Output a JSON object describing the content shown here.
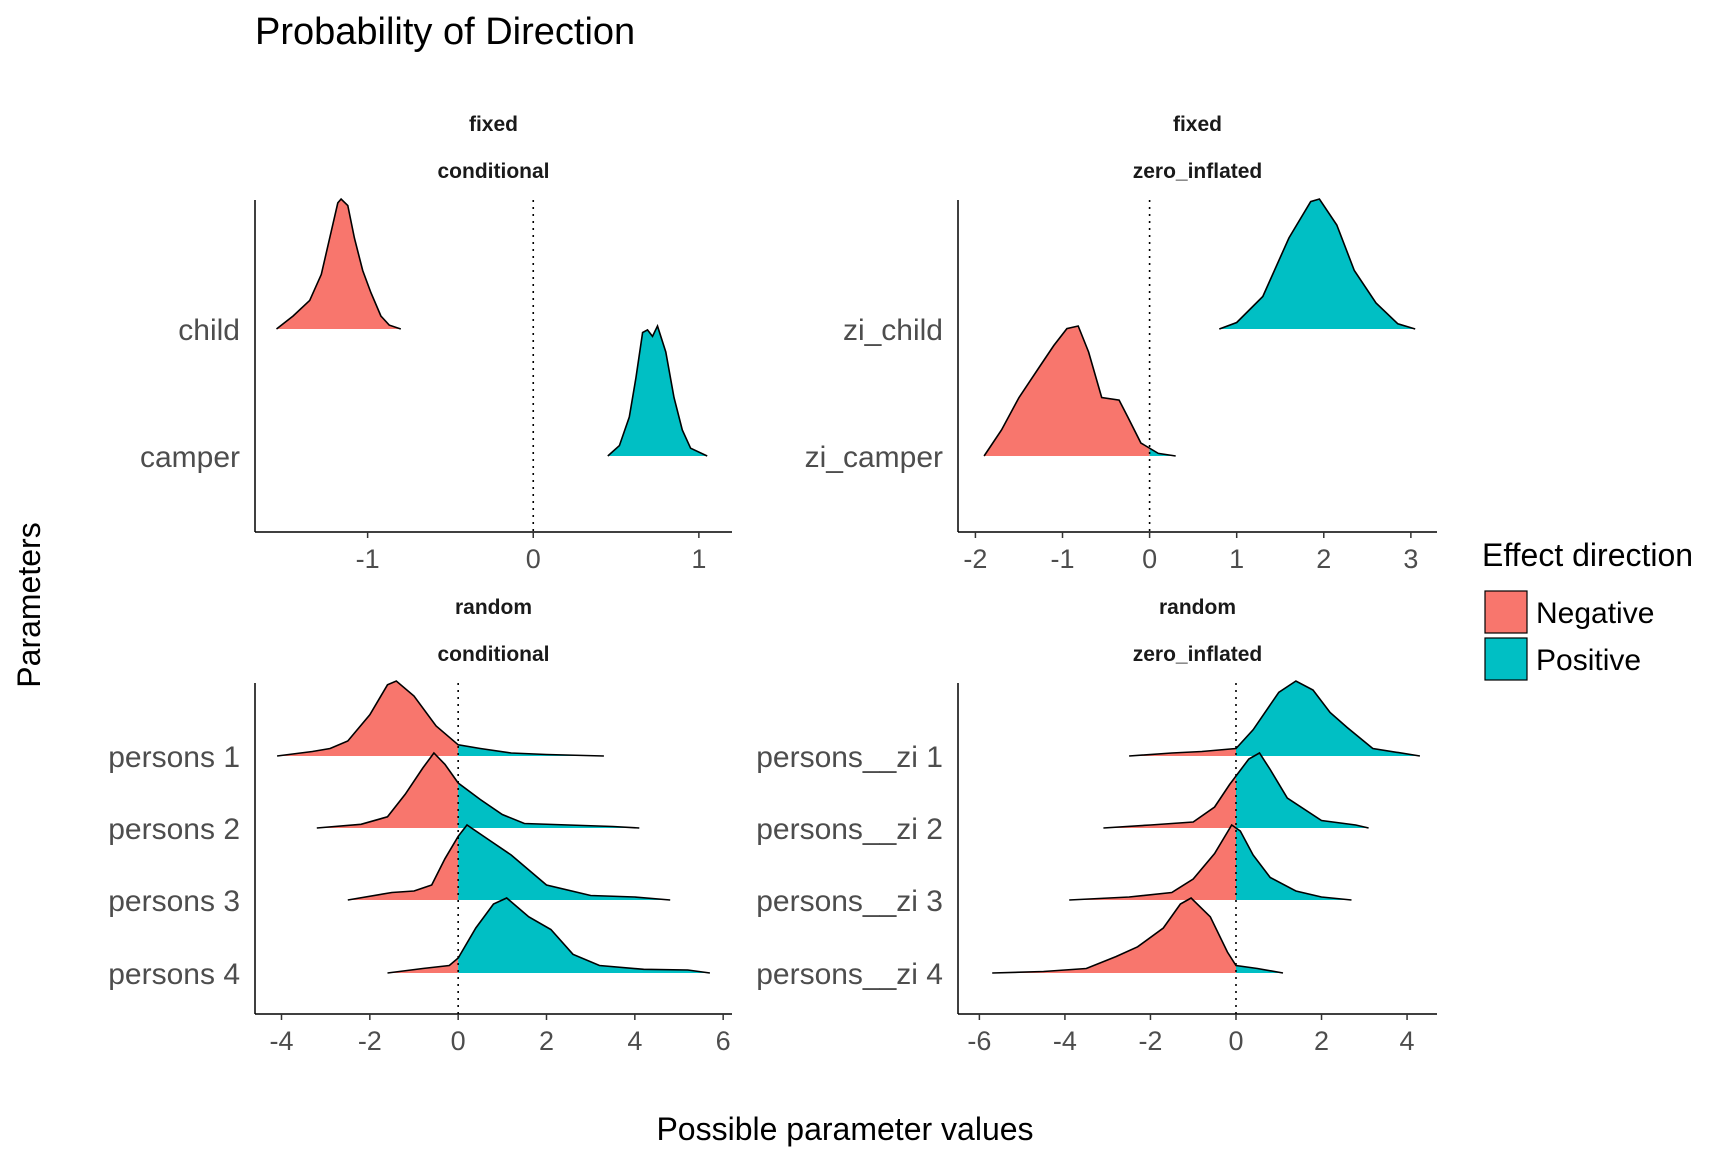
{
  "chart_data": {
    "type": "area",
    "title": "Probability of Direction",
    "xlabel": "Possible parameter values",
    "ylabel": "Parameters",
    "grid": false,
    "legend": {
      "title": "Effect direction",
      "placement": "right",
      "entries": [
        {
          "label": "Negative",
          "color": "#F8766D"
        },
        {
          "label": "Positive",
          "color": "#00BFC4"
        }
      ]
    },
    "reference_line_x": 0,
    "panels": [
      {
        "strip": [
          "fixed",
          "conditional"
        ],
        "xlim": [
          -1.68,
          1.2
        ],
        "xticks": [
          -1,
          0,
          1
        ],
        "parameters": [
          {
            "name": "child",
            "x": [
              -1.55,
              -1.45,
              -1.35,
              -1.28,
              -1.22,
              -1.18,
              -1.16,
              -1.12,
              -1.08,
              -1.03,
              -0.98,
              -0.92,
              -0.87,
              -0.8
            ],
            "density": [
              0,
              0.1,
              0.22,
              0.42,
              0.75,
              0.97,
              1.0,
              0.95,
              0.7,
              0.45,
              0.28,
              0.1,
              0.03,
              0
            ]
          },
          {
            "name": "camper",
            "x": [
              0.45,
              0.52,
              0.58,
              0.62,
              0.66,
              0.69,
              0.72,
              0.75,
              0.8,
              0.85,
              0.9,
              0.95,
              1.05
            ],
            "density": [
              0,
              0.08,
              0.3,
              0.6,
              0.95,
              0.97,
              0.92,
              1.0,
              0.8,
              0.45,
              0.2,
              0.06,
              0
            ]
          }
        ]
      },
      {
        "strip": [
          "fixed",
          "zero_inflated"
        ],
        "xlim": [
          -2.2,
          3.3
        ],
        "xticks": [
          -2,
          -1,
          0,
          1,
          2,
          3
        ],
        "parameters": [
          {
            "name": "zi_child",
            "x": [
              0.8,
              1.0,
              1.3,
              1.6,
              1.85,
              1.95,
              2.15,
              2.35,
              2.6,
              2.85,
              3.05
            ],
            "density": [
              0,
              0.05,
              0.25,
              0.7,
              0.98,
              1.0,
              0.8,
              0.45,
              0.2,
              0.04,
              0
            ]
          },
          {
            "name": "zi_camper",
            "x": [
              -1.9,
              -1.7,
              -1.5,
              -1.25,
              -1.1,
              -0.95,
              -0.82,
              -0.7,
              -0.55,
              -0.35,
              -0.25,
              -0.1,
              0.1,
              0.3
            ],
            "density": [
              0,
              0.2,
              0.45,
              0.7,
              0.85,
              0.98,
              1.0,
              0.8,
              0.45,
              0.43,
              0.3,
              0.1,
              0.02,
              0
            ]
          }
        ]
      },
      {
        "strip": [
          "random",
          "conditional"
        ],
        "xlim": [
          -4.6,
          6.2
        ],
        "xticks": [
          -4,
          -2,
          0,
          2,
          4,
          6
        ],
        "parameters": [
          {
            "name": "persons 1",
            "x": [
              -4.1,
              -3.3,
              -2.9,
              -2.5,
              -2.0,
              -1.6,
              -1.4,
              -1.0,
              -0.5,
              0,
              0.5,
              1.2,
              2.0,
              3.3
            ],
            "density": [
              0,
              0.06,
              0.1,
              0.2,
              0.55,
              0.95,
              1.0,
              0.8,
              0.4,
              0.15,
              0.1,
              0.04,
              0.02,
              0
            ]
          },
          {
            "name": "persons 2",
            "x": [
              -3.2,
              -2.2,
              -1.6,
              -1.2,
              -0.8,
              -0.55,
              -0.3,
              0,
              0.5,
              1.0,
              1.5,
              2.5,
              3.5,
              4.1
            ],
            "density": [
              0,
              0.05,
              0.15,
              0.45,
              0.8,
              1.0,
              0.85,
              0.6,
              0.38,
              0.18,
              0.06,
              0.04,
              0.02,
              0
            ]
          },
          {
            "name": "persons 3",
            "x": [
              -2.5,
              -1.5,
              -1.0,
              -0.6,
              -0.3,
              0,
              0.2,
              0.7,
              1.2,
              2.0,
              3.0,
              4.0,
              4.8
            ],
            "density": [
              0,
              0.1,
              0.12,
              0.2,
              0.55,
              0.85,
              1.0,
              0.8,
              0.6,
              0.2,
              0.06,
              0.04,
              0
            ]
          },
          {
            "name": "persons 4",
            "x": [
              -1.6,
              -0.8,
              -0.2,
              0,
              0.4,
              0.8,
              1.1,
              1.6,
              2.1,
              2.6,
              3.2,
              4.2,
              5.2,
              5.7
            ],
            "density": [
              0,
              0.06,
              0.1,
              0.2,
              0.6,
              0.92,
              1.0,
              0.75,
              0.58,
              0.25,
              0.1,
              0.05,
              0.04,
              0
            ]
          }
        ]
      },
      {
        "strip": [
          "random",
          "zero_inflated"
        ],
        "xlim": [
          -6.5,
          4.7
        ],
        "xticks": [
          -6,
          -4,
          -2,
          0,
          2,
          4
        ],
        "parameters": [
          {
            "name": "persons__zi 1",
            "x": [
              -2.5,
              -1.5,
              -0.8,
              0,
              0.4,
              1.0,
              1.4,
              1.8,
              2.2,
              2.6,
              3.2,
              4.3
            ],
            "density": [
              0,
              0.04,
              0.06,
              0.1,
              0.35,
              0.85,
              1.0,
              0.88,
              0.58,
              0.38,
              0.1,
              0
            ]
          },
          {
            "name": "persons__zi 2",
            "x": [
              -3.1,
              -2.0,
              -1.0,
              -0.5,
              -0.15,
              0.3,
              0.55,
              0.8,
              1.2,
              2.0,
              2.8,
              3.1
            ],
            "density": [
              0,
              0.04,
              0.08,
              0.28,
              0.58,
              0.92,
              1.0,
              0.78,
              0.4,
              0.1,
              0.04,
              0
            ]
          },
          {
            "name": "persons__zi 3",
            "x": [
              -3.9,
              -2.5,
              -1.5,
              -1.0,
              -0.5,
              -0.1,
              0.1,
              0.4,
              0.8,
              1.4,
              2.0,
              2.7
            ],
            "density": [
              0,
              0.04,
              0.1,
              0.28,
              0.62,
              1.0,
              0.92,
              0.6,
              0.3,
              0.12,
              0.04,
              0
            ]
          },
          {
            "name": "persons__zi 4",
            "x": [
              -5.7,
              -4.5,
              -3.5,
              -2.8,
              -2.3,
              -1.7,
              -1.3,
              -1.05,
              -0.6,
              -0.2,
              0,
              0.5,
              1.1
            ],
            "density": [
              0,
              0.02,
              0.06,
              0.22,
              0.35,
              0.6,
              0.92,
              1.0,
              0.75,
              0.28,
              0.1,
              0.06,
              0
            ]
          }
        ]
      }
    ]
  }
}
